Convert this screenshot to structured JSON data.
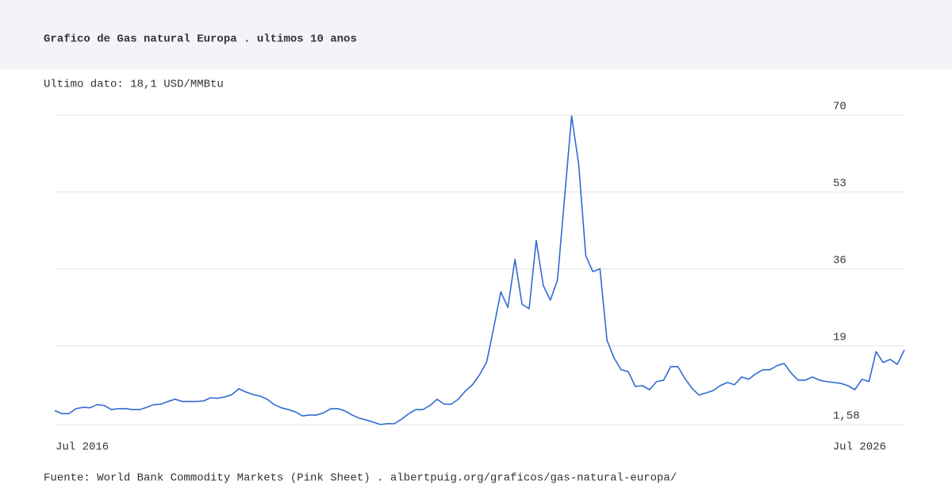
{
  "chart_data": {
    "type": "line",
    "title": "Grafico de Gas natural Europa . ultimos 10 anos",
    "subtitle": "Ultimo dato: 18,1 USD/MMBtu",
    "source": "Fuente: World Bank Commodity Markets (Pink Sheet) . albertpuig.org/graficos/gas-natural-europa/",
    "categories": [
      "Jul 2016",
      null,
      null,
      null,
      null,
      null,
      null,
      null,
      null,
      null,
      null,
      null,
      null,
      null,
      null,
      null,
      null,
      null,
      null,
      null,
      null,
      null,
      null,
      null,
      null,
      null,
      null,
      null,
      null,
      null,
      null,
      null,
      null,
      null,
      null,
      null,
      null,
      null,
      null,
      null,
      null,
      null,
      null,
      null,
      null,
      null,
      null,
      null,
      null,
      null,
      null,
      null,
      null,
      null,
      null,
      null,
      null,
      null,
      null,
      null,
      null,
      null,
      null,
      null,
      null,
      null,
      null,
      null,
      null,
      null,
      null,
      null,
      null,
      null,
      null,
      null,
      null,
      null,
      null,
      null,
      null,
      null,
      null,
      null,
      null,
      null,
      null,
      null,
      null,
      null,
      null,
      null,
      null,
      null,
      null,
      null,
      null,
      null,
      null,
      null,
      null,
      null,
      null,
      null,
      null,
      null,
      null,
      null,
      null,
      null,
      null,
      null,
      null,
      null,
      null,
      null,
      null,
      null,
      null,
      null,
      "Jul 2026"
    ],
    "values": [
      4.7,
      4.0,
      4.0,
      5.1,
      5.4,
      5.3,
      6.0,
      5.8,
      4.9,
      5.1,
      5.1,
      4.9,
      4.9,
      5.4,
      6.0,
      6.1,
      6.7,
      7.2,
      6.7,
      6.7,
      6.7,
      6.8,
      7.5,
      7.4,
      7.7,
      8.2,
      9.5,
      8.8,
      8.2,
      7.9,
      7.2,
      6.0,
      5.3,
      4.9,
      4.4,
      3.5,
      3.7,
      3.7,
      4.2,
      5.1,
      5.1,
      4.6,
      3.7,
      3.0,
      2.6,
      2.1,
      1.6,
      1.8,
      1.8,
      2.8,
      4.0,
      4.9,
      4.9,
      5.8,
      7.2,
      6.1,
      6.1,
      7.2,
      9.0,
      10.4,
      12.6,
      15.4,
      23.0,
      30.9,
      27.5,
      38.1,
      28.2,
      27.2,
      42.3,
      32.3,
      29.1,
      33.5,
      51.6,
      69.8,
      59.1,
      38.9,
      35.4,
      36.0,
      20.2,
      16.3,
      13.7,
      13.3,
      10.0,
      10.2,
      9.3,
      11.1,
      11.4,
      14.4,
      14.4,
      11.8,
      9.6,
      8.1,
      8.6,
      9.1,
      10.2,
      10.9,
      10.4,
      12.1,
      11.6,
      12.8,
      13.7,
      13.7,
      14.6,
      15.1,
      13.0,
      11.4,
      11.4,
      12.1,
      11.4,
      11.1,
      10.9,
      10.7,
      10.2,
      9.3,
      11.6,
      11.1,
      17.7,
      15.3,
      16.0,
      14.9,
      18.1
    ],
    "color": "#2f6bd0",
    "ylim": [
      1.58,
      70
    ],
    "yticks": [
      {
        "value": 1.58,
        "label": "1,58"
      },
      19,
      36,
      53,
      70
    ],
    "grid": true
  }
}
